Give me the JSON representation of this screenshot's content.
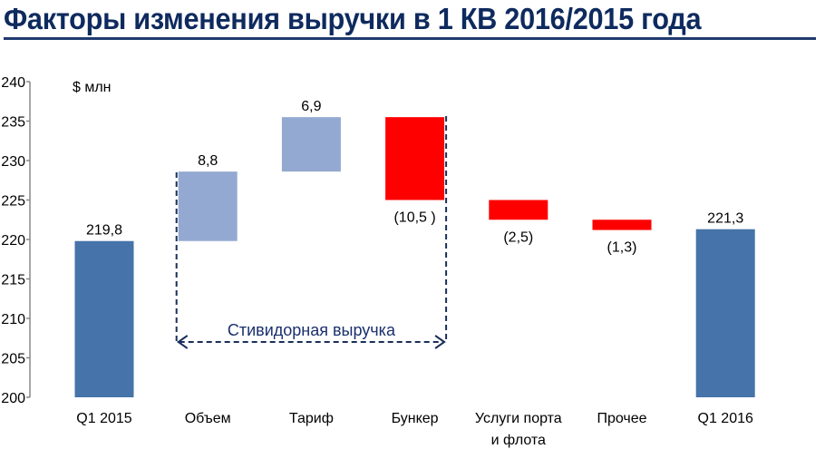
{
  "title": "Факторы изменения выручки в 1 КВ 2016/2015 года",
  "chart_data": {
    "type": "waterfall",
    "title": "Факторы изменения выручки в 1 КВ 2016/2015 года",
    "unit_label": "$ млн",
    "ylim": [
      200,
      240
    ],
    "yticks": [
      200,
      205,
      210,
      215,
      220,
      225,
      230,
      235,
      240
    ],
    "grid": false,
    "categories": [
      "Q1 2015",
      "Объем",
      "Тариф",
      "Бункер",
      "Услуги порта и флота",
      "Прочее",
      "Q1 2016"
    ],
    "category_lines": [
      [
        "Q1 2015"
      ],
      [
        "Объем"
      ],
      [
        "Тариф"
      ],
      [
        "Бункер"
      ],
      [
        "Услуги порта",
        "и флота"
      ],
      [
        "Прочее"
      ],
      [
        "Q1 2016"
      ]
    ],
    "values": [
      219.8,
      8.8,
      6.9,
      -10.5,
      -2.5,
      -1.3,
      221.3
    ],
    "kinds": [
      "total",
      "delta",
      "delta",
      "delta",
      "delta",
      "delta",
      "total"
    ],
    "data_labels": [
      "219,8",
      "8,8",
      "6,9",
      "(10,5 )",
      "(2,5)",
      "(1,3)",
      "221,3"
    ],
    "colors": {
      "total": "#4673a9",
      "increase": "#94a9d1",
      "decrease": "#ff0000",
      "bracket": "#1a2f5a"
    },
    "annotation": {
      "text": "Стивидорная выручка",
      "spans": [
        "Объем",
        "Бункер"
      ]
    }
  }
}
